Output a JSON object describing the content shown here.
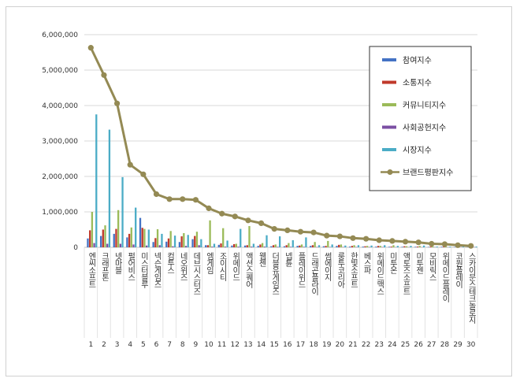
{
  "chart_data": {
    "type": "bar",
    "ylim": [
      0,
      6000000
    ],
    "yticks": [
      "0",
      "1,000,000",
      "2,000,000",
      "3,000,000",
      "4,000,000",
      "5,000,000",
      "6,000,000"
    ],
    "categories": [
      "엔씨소프트",
      "크래프톤",
      "넷마블",
      "펄어비스",
      "미스터블루",
      "넥슨게임즈",
      "컴투스",
      "네오위즈",
      "데브시스터즈",
      "엠게임",
      "조이시티",
      "위메이드",
      "액션스퀘어",
      "웹젠",
      "더블유게임즈",
      "넵튠",
      "플레이위드",
      "드래곤플라이",
      "썸에이지",
      "룽투코리아",
      "한빛소프트",
      "베스파",
      "위메이드맥스",
      "미투온",
      "액토즈소프트",
      "미투젠",
      "모비릭스",
      "위메이드플레이",
      "코원플레이",
      "스카이문스테크놀로지"
    ],
    "ranks": [
      "1",
      "2",
      "3",
      "4",
      "5",
      "6",
      "7",
      "8",
      "9",
      "10",
      "11",
      "12",
      "13",
      "14",
      "15",
      "16",
      "17",
      "18",
      "19",
      "20",
      "21",
      "22",
      "23",
      "24",
      "25",
      "26",
      "27",
      "28",
      "29",
      "30"
    ],
    "series": [
      {
        "name": "참여지수",
        "type": "bar",
        "color": "#4472c4",
        "values": [
          250000,
          320000,
          380000,
          280000,
          830000,
          150000,
          160000,
          150000,
          230000,
          60000,
          70000,
          50000,
          50000,
          40000,
          30000,
          30000,
          40000,
          40000,
          30000,
          40000,
          20000,
          20000,
          20000,
          15000,
          15000,
          15000,
          10000,
          15000,
          10000,
          5000
        ]
      },
      {
        "name": "소통지수",
        "type": "bar",
        "color": "#c0392b",
        "values": [
          480000,
          500000,
          520000,
          380000,
          550000,
          260000,
          250000,
          310000,
          320000,
          60000,
          110000,
          90000,
          60000,
          80000,
          60000,
          60000,
          50000,
          60000,
          40000,
          70000,
          40000,
          30000,
          40000,
          20000,
          30000,
          20000,
          20000,
          20000,
          15000,
          10000
        ]
      },
      {
        "name": "커뮤니티지수",
        "type": "bar",
        "color": "#9bbb59",
        "values": [
          1000000,
          620000,
          1050000,
          560000,
          520000,
          510000,
          460000,
          400000,
          440000,
          760000,
          540000,
          100000,
          600000,
          120000,
          80000,
          120000,
          80000,
          150000,
          180000,
          80000,
          60000,
          40000,
          40000,
          60000,
          30000,
          40000,
          30000,
          30000,
          20000,
          20000
        ]
      },
      {
        "name": "사회공헌지수",
        "type": "bar",
        "color": "#7b4fa3",
        "values": [
          120000,
          100000,
          100000,
          80000,
          50000,
          60000,
          30000,
          40000,
          60000,
          20000,
          20000,
          20000,
          20000,
          20000,
          15000,
          15000,
          15000,
          10000,
          10000,
          10000,
          10000,
          10000,
          10000,
          5000,
          5000,
          5000,
          5000,
          5000,
          5000,
          5000
        ]
      },
      {
        "name": "시장지수",
        "type": "bar",
        "color": "#4bacc6",
        "values": [
          3750000,
          3320000,
          1980000,
          1120000,
          500000,
          380000,
          330000,
          350000,
          230000,
          100000,
          190000,
          520000,
          100000,
          340000,
          310000,
          200000,
          280000,
          60000,
          80000,
          50000,
          60000,
          50000,
          60000,
          40000,
          40000,
          50000,
          20000,
          20000,
          20000,
          20000
        ]
      },
      {
        "name": "브랜드평판지수",
        "type": "line",
        "color": "#948a54",
        "values": [
          5630000,
          4860000,
          4060000,
          2330000,
          2060000,
          1500000,
          1360000,
          1360000,
          1340000,
          1100000,
          950000,
          870000,
          760000,
          680000,
          520000,
          480000,
          440000,
          420000,
          330000,
          310000,
          260000,
          240000,
          200000,
          180000,
          160000,
          140000,
          100000,
          90000,
          60000,
          40000
        ]
      }
    ]
  }
}
